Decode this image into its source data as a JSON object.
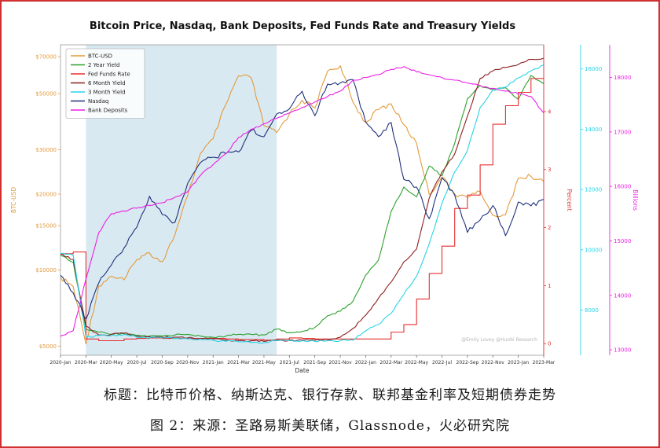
{
  "captions": {
    "line1": "标题：比特币价格、纳斯达克、银行存款、联邦基金利率及短期债券走势",
    "line2": "图 2：来源：圣路易斯美联储，Glassnode，火必研究院"
  },
  "chart_data": {
    "type": "line",
    "title": "Bitcoin Price, Nasdaq, Bank Deposits, Fed Funds Rate and Treasury Yields",
    "xlabel": "Date",
    "watermark": "@Emily Lovey @Huobi Research",
    "legend_position": "upper-left",
    "grid": false,
    "x": [
      "2020-Jan",
      "2020-Feb",
      "2020-Mar",
      "2020-Apr",
      "2020-May",
      "2020-Jun",
      "2020-Jul",
      "2020-Aug",
      "2020-Sep",
      "2020-Oct",
      "2020-Nov",
      "2020-Dec",
      "2021-Jan",
      "2021-Feb",
      "2021-Mar",
      "2021-Apr",
      "2021-May",
      "2021-Jun",
      "2021-Jul",
      "2021-Aug",
      "2021-Sep",
      "2021-Oct",
      "2021-Nov",
      "2021-Dec",
      "2022-Jan",
      "2022-Feb",
      "2022-Mar",
      "2022-Apr",
      "2022-May",
      "2022-Jun",
      "2022-Jul",
      "2022-Aug",
      "2022-Sep",
      "2022-Oct",
      "2022-Nov",
      "2022-Dec",
      "2023-Jan",
      "2023-Feb",
      "2023-Mar"
    ],
    "x_tick_every": 2,
    "shaded_region": {
      "from": "2020-Mar",
      "to": "2021-Jun",
      "color": "#d8e9f1"
    },
    "axes": [
      {
        "id": "btc",
        "side": "left",
        "label": "BTC-USD",
        "color": "#e39a3b",
        "scale": "log",
        "domain": [
          4600,
          78000
        ],
        "ticks": [
          5000,
          10000,
          15000,
          20000,
          30000,
          50000,
          70000
        ],
        "tick_labels": [
          "$5000",
          "$10000",
          "$15000",
          "$20000",
          "$30000",
          "$50000",
          "$70000"
        ]
      },
      {
        "id": "percent",
        "side": "right",
        "label": "Percent",
        "color": "#e03232",
        "scale": "linear",
        "domain": [
          -0.2,
          5.15
        ],
        "offset": 0,
        "ticks": [
          0,
          1,
          2,
          3,
          4
        ],
        "tick_labels": [
          "0",
          "1",
          "2",
          "3",
          "4"
        ]
      },
      {
        "id": "nasdaq",
        "side": "right",
        "label": "",
        "color": "#27d3e6",
        "scale": "linear",
        "domain": [
          6500,
          16800
        ],
        "offset": 47,
        "ticks": [
          8000,
          10000,
          12000,
          14000,
          16000
        ],
        "tick_labels": [
          "8000",
          "10000",
          "12000",
          "14000",
          "16000"
        ]
      },
      {
        "id": "billions",
        "side": "right",
        "label": "Billions",
        "color": "#ec1fe4",
        "scale": "linear",
        "domain": [
          12900,
          18600
        ],
        "offset": 84,
        "ticks": [
          13000,
          14000,
          15000,
          16000,
          17000,
          18000
        ],
        "tick_labels": [
          "13000",
          "14000",
          "15000",
          "16000",
          "17000",
          "18000"
        ]
      }
    ],
    "series": [
      {
        "name": "BTC-USD",
        "color": "#e39a3b",
        "axis": "btc",
        "values": [
          9350,
          8600,
          5100,
          8650,
          9450,
          9150,
          11000,
          11700,
          10800,
          13800,
          19700,
          28900,
          33100,
          45200,
          58800,
          57700,
          37300,
          35000,
          41500,
          47100,
          43800,
          61300,
          64400,
          46200,
          38500,
          43200,
          45500,
          37600,
          31800,
          19900,
          23300,
          20000,
          19400,
          20500,
          16500,
          16550,
          23100,
          23500,
          22400
        ]
      },
      {
        "name": "2 Year Yield",
        "color": "#2ca02c",
        "axis": "percent",
        "values": [
          1.52,
          1.4,
          0.25,
          0.2,
          0.16,
          0.17,
          0.14,
          0.13,
          0.13,
          0.15,
          0.16,
          0.13,
          0.11,
          0.13,
          0.16,
          0.16,
          0.15,
          0.25,
          0.19,
          0.21,
          0.28,
          0.48,
          0.56,
          0.73,
          1.18,
          1.44,
          2.28,
          2.7,
          2.53,
          3.06,
          2.89,
          3.45,
          4.22,
          4.45,
          4.38,
          4.41,
          4.21,
          4.62,
          4.48
        ]
      },
      {
        "name": "Fed Funds Rate",
        "color": "#e62e2e",
        "axis": "percent",
        "step": true,
        "values": [
          1.55,
          1.58,
          0.08,
          0.05,
          0.05,
          0.08,
          0.09,
          0.1,
          0.09,
          0.09,
          0.09,
          0.09,
          0.09,
          0.08,
          0.07,
          0.07,
          0.06,
          0.08,
          0.1,
          0.09,
          0.08,
          0.08,
          0.08,
          0.08,
          0.08,
          0.08,
          0.2,
          0.33,
          0.77,
          1.21,
          1.68,
          2.33,
          2.56,
          3.08,
          3.78,
          4.1,
          4.33,
          4.57,
          4.57
        ]
      },
      {
        "name": "6 Month Yield",
        "color": "#8e1f1f",
        "axis": "percent",
        "values": [
          1.54,
          1.45,
          0.3,
          0.15,
          0.16,
          0.18,
          0.13,
          0.12,
          0.11,
          0.11,
          0.1,
          0.09,
          0.08,
          0.06,
          0.05,
          0.05,
          0.04,
          0.06,
          0.06,
          0.06,
          0.06,
          0.07,
          0.11,
          0.26,
          0.49,
          0.78,
          1.06,
          1.41,
          1.63,
          2.51,
          2.96,
          3.27,
          3.92,
          4.57,
          4.7,
          4.76,
          4.81,
          4.9,
          4.92
        ]
      },
      {
        "name": "3 Month Yield",
        "color": "#27d3e6",
        "axis": "percent",
        "values": [
          1.55,
          1.52,
          0.11,
          0.14,
          0.14,
          0.16,
          0.11,
          0.1,
          0.1,
          0.09,
          0.08,
          0.08,
          0.06,
          0.04,
          0.03,
          0.02,
          0.02,
          0.05,
          0.05,
          0.05,
          0.04,
          0.05,
          0.05,
          0.06,
          0.22,
          0.33,
          0.52,
          0.85,
          1.16,
          1.72,
          2.42,
          2.96,
          3.33,
          4.07,
          4.37,
          4.42,
          4.58,
          4.7,
          4.8
        ]
      },
      {
        "name": "Nasdaq",
        "color": "#20307c",
        "axis": "nasdaq",
        "values": [
          9151,
          8567,
          7700,
          8890,
          9490,
          10059,
          10745,
          11775,
          11168,
          10912,
          12199,
          12888,
          13071,
          13192,
          13247,
          13963,
          13749,
          14504,
          14673,
          15259,
          14449,
          15498,
          15538,
          15645,
          14240,
          13751,
          14221,
          12335,
          12081,
          11029,
          12391,
          11816,
          10576,
          10988,
          11468,
          10466,
          11585,
          11456,
          11675
        ]
      },
      {
        "name": "Bank Deposits",
        "color": "#ec1fe4",
        "axis": "billions",
        "values": [
          13250,
          13350,
          14300,
          15150,
          15500,
          15550,
          15600,
          15650,
          15700,
          15800,
          15900,
          16200,
          16400,
          16600,
          16900,
          17050,
          17150,
          17250,
          17350,
          17450,
          17550,
          17650,
          17750,
          17950,
          18000,
          18050,
          18150,
          18200,
          18100,
          18050,
          18000,
          17950,
          17900,
          17850,
          17800,
          17750,
          17700,
          17650,
          17350
        ]
      }
    ]
  }
}
